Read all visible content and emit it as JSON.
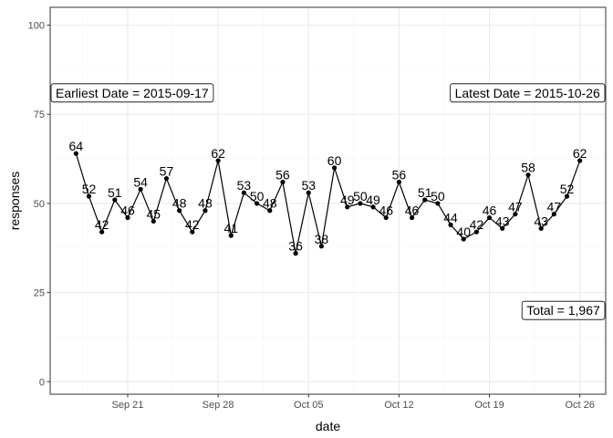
{
  "chart_data": {
    "type": "line",
    "xlabel": "date",
    "ylabel": "responses",
    "xlim": [
      "2015-09-15",
      "2015-10-28"
    ],
    "ylim": [
      -3.5,
      105
    ],
    "grid": true,
    "x": [
      "2015-09-17",
      "2015-09-18",
      "2015-09-19",
      "2015-09-20",
      "2015-09-21",
      "2015-09-22",
      "2015-09-23",
      "2015-09-24",
      "2015-09-25",
      "2015-09-26",
      "2015-09-27",
      "2015-09-28",
      "2015-09-29",
      "2015-09-30",
      "2015-10-01",
      "2015-10-02",
      "2015-10-03",
      "2015-10-04",
      "2015-10-05",
      "2015-10-06",
      "2015-10-07",
      "2015-10-08",
      "2015-10-09",
      "2015-10-10",
      "2015-10-11",
      "2015-10-12",
      "2015-10-13",
      "2015-10-14",
      "2015-10-15",
      "2015-10-16",
      "2015-10-17",
      "2015-10-18",
      "2015-10-19",
      "2015-10-20",
      "2015-10-21",
      "2015-10-22",
      "2015-10-23",
      "2015-10-24",
      "2015-10-25",
      "2015-10-26"
    ],
    "values": [
      64,
      52,
      42,
      51,
      46,
      54,
      45,
      57,
      48,
      42,
      48,
      62,
      41,
      53,
      50,
      48,
      56,
      36,
      53,
      38,
      60,
      49,
      50,
      49,
      46,
      56,
      46,
      51,
      50,
      44,
      40,
      42,
      46,
      43,
      47,
      58,
      43,
      47,
      52,
      62
    ],
    "x_ticks": [
      {
        "date": "2015-09-21",
        "label": "Sep 21"
      },
      {
        "date": "2015-09-28",
        "label": "Sep 28"
      },
      {
        "date": "2015-10-05",
        "label": "Oct 05"
      },
      {
        "date": "2015-10-12",
        "label": "Oct 12"
      },
      {
        "date": "2015-10-19",
        "label": "Oct 19"
      },
      {
        "date": "2015-10-26",
        "label": "Oct 26"
      }
    ],
    "y_ticks": [
      0,
      25,
      50,
      75,
      100
    ],
    "annotations": [
      {
        "text": "Earliest Date = 2015-09-17",
        "x": "2015-09-17",
        "y": 81
      },
      {
        "text": "Latest Date = 2015-10-26",
        "x": "2015-10-26",
        "y": 81
      },
      {
        "text": "Total = 1,967",
        "x": "2015-10-26",
        "y": 20
      }
    ],
    "colors": {
      "line": "#000000",
      "point": "#000000",
      "grid_major": "#ebebeb",
      "grid_minor": "#f5f5f5",
      "panel_border": "#333333"
    }
  }
}
